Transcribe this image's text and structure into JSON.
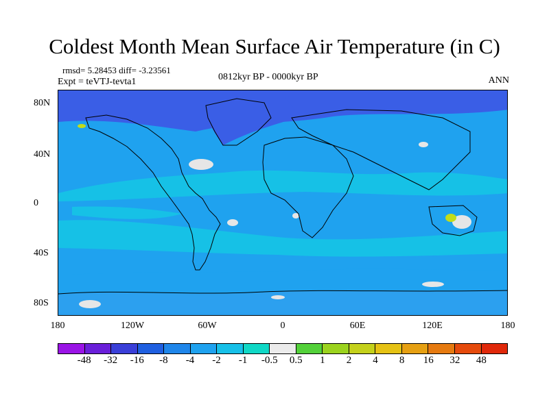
{
  "title": "Coldest Month Mean Surface Air Temperature (in C)",
  "stats": "rmsd= 5.28453 diff= -3.23561",
  "experiment": "Expt = teVTJ-tevta1",
  "period": "0812kyr BP - 0000kyr BP",
  "season": "ANN",
  "map": {
    "projection": "cylindrical equidistant",
    "lat_ticks": [
      "80N",
      "40N",
      "0",
      "40S",
      "80S"
    ],
    "lon_ticks": [
      "180",
      "120W",
      "60W",
      "0",
      "60E",
      "120E",
      "180"
    ],
    "background_color": "#1fa2ef",
    "coastline_color": "#000000",
    "field_colors": {
      "arctic": "#3a5ee6",
      "subtropics": "#16c1e6",
      "southern_ocean": "#1fa2ef",
      "antarctica": "#2ca0ef",
      "near_zero": "#e6e6e6",
      "warm": "#c2dd1a"
    }
  },
  "colorbar": {
    "labels": [
      "-48",
      "-32",
      "-16",
      "-8",
      "-4",
      "-2",
      "-1",
      "-0.5",
      "0.5",
      "1",
      "2",
      "4",
      "8",
      "16",
      "32",
      "48"
    ],
    "colors": [
      "#9a14e6",
      "#6a1fd9",
      "#3a3fd8",
      "#1f5fe0",
      "#1f86ea",
      "#1fa2ef",
      "#17c0e8",
      "#10d8c6",
      "#ebebeb",
      "#53d13a",
      "#9bd31e",
      "#c4d11b",
      "#e5c214",
      "#e6a012",
      "#e67a10",
      "#e54a0c",
      "#e0280a"
    ]
  }
}
